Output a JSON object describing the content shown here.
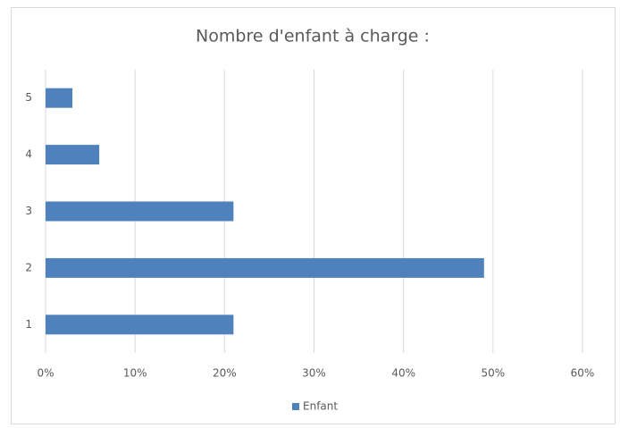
{
  "chart_data": {
    "type": "hbar",
    "title": "Nombre d'enfant à charge :",
    "categories": [
      "1",
      "2",
      "3",
      "4",
      "5"
    ],
    "series": [
      {
        "name": "Enfant",
        "color": "#4f81bd",
        "values": [
          21,
          49,
          21,
          6,
          3
        ]
      }
    ],
    "xlim": [
      0,
      60
    ],
    "xticks": [
      {
        "value": 0,
        "label": "0%"
      },
      {
        "value": 10,
        "label": "10%"
      },
      {
        "value": 20,
        "label": "20%"
      },
      {
        "value": 30,
        "label": "30%"
      },
      {
        "value": 40,
        "label": "40%"
      },
      {
        "value": 50,
        "label": "50%"
      },
      {
        "value": 60,
        "label": "60%"
      }
    ],
    "grid": true,
    "legend": "bottom"
  }
}
